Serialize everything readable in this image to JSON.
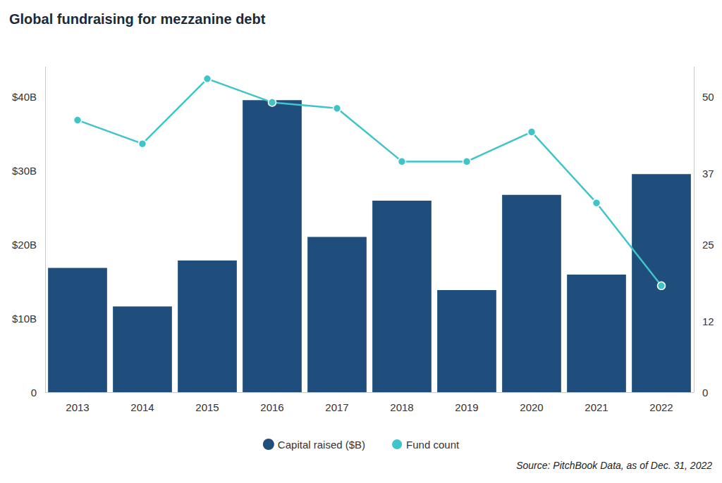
{
  "chart_data": {
    "type": "bar",
    "title": "Global fundraising for mezzanine debt",
    "source": "Source: PitchBook Data, as of Dec. 31, 2022",
    "categories": [
      "2013",
      "2014",
      "2015",
      "2016",
      "2017",
      "2018",
      "2019",
      "2020",
      "2021",
      "2022"
    ],
    "series": [
      {
        "name": "Capital raised ($B)",
        "type": "bar",
        "color": "#1f4e7c",
        "values": [
          16.8,
          11.6,
          17.8,
          39.5,
          21.0,
          25.9,
          13.8,
          26.7,
          15.9,
          29.5
        ]
      },
      {
        "name": "Fund count",
        "type": "line",
        "color": "#3fc5c9",
        "marker": "circle",
        "axis": "y2",
        "values": [
          46,
          42,
          53,
          49,
          48,
          39,
          39,
          44,
          32,
          18
        ]
      }
    ],
    "ylim": [
      0,
      44
    ],
    "yticks": [
      0,
      {
        "value": 10,
        "label": "$10B"
      },
      {
        "value": 20,
        "label": "$20B"
      },
      {
        "value": 30,
        "label": "$30B"
      },
      {
        "value": 40,
        "label": "$40B"
      }
    ],
    "y2lim": [
      0,
      55
    ],
    "y2ticks": [
      0,
      12,
      25,
      37,
      50
    ],
    "grid": false,
    "legend": "bottom"
  }
}
